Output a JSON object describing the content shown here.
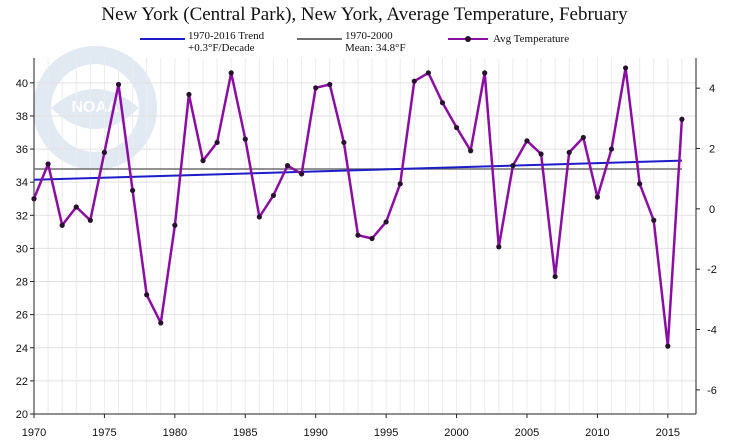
{
  "chart_data": {
    "type": "line",
    "title": "New York (Central Park), New York, Average Temperature, February",
    "xlim": [
      1970,
      2017
    ],
    "ylim": [
      20,
      41.5
    ],
    "ylim_right": [
      -6.8,
      5
    ],
    "x_ticks": [
      1970,
      1975,
      1980,
      1985,
      1990,
      1995,
      2000,
      2005,
      2010,
      2015
    ],
    "y_ticks": [
      20,
      22,
      24,
      26,
      28,
      30,
      32,
      34,
      36,
      38,
      40
    ],
    "y_ticks_right": [
      -6,
      -4,
      -2,
      0,
      2,
      4
    ],
    "grid": true,
    "legend_position": "top",
    "series": [
      {
        "name": "Avg Temperature",
        "color": "#8b0ea3",
        "x": [
          1970,
          1971,
          1972,
          1973,
          1974,
          1975,
          1976,
          1977,
          1978,
          1979,
          1980,
          1981,
          1982,
          1983,
          1984,
          1985,
          1986,
          1987,
          1988,
          1989,
          1990,
          1991,
          1992,
          1993,
          1994,
          1995,
          1996,
          1997,
          1998,
          1999,
          2000,
          2001,
          2002,
          2003,
          2004,
          2005,
          2006,
          2007,
          2008,
          2009,
          2010,
          2011,
          2012,
          2013,
          2014,
          2015,
          2016
        ],
        "values": [
          33.0,
          35.1,
          31.4,
          32.5,
          31.7,
          35.8,
          39.9,
          33.5,
          27.2,
          25.5,
          31.4,
          39.3,
          35.3,
          36.4,
          40.6,
          36.6,
          31.9,
          33.2,
          35.0,
          34.5,
          39.7,
          39.9,
          36.4,
          30.8,
          30.6,
          31.6,
          33.9,
          40.1,
          40.6,
          38.8,
          37.3,
          35.9,
          40.6,
          30.1,
          35.0,
          36.5,
          35.7,
          28.3,
          35.8,
          36.7,
          33.1,
          36.0,
          40.9,
          33.9,
          31.7,
          24.1,
          37.8
        ]
      }
    ],
    "trend": {
      "label_line1": "1970-2016 Trend",
      "label_line2": "+0.3°F/Decade",
      "color": "#1c1cc8",
      "start": [
        1970,
        34.15
      ],
      "end": [
        2016,
        35.3
      ]
    },
    "mean": {
      "label_line1": "1970-2000",
      "label_line2": "Mean: 34.8°F",
      "color": "#6e6e6e",
      "value": 34.8
    },
    "watermark": "NOAA"
  }
}
